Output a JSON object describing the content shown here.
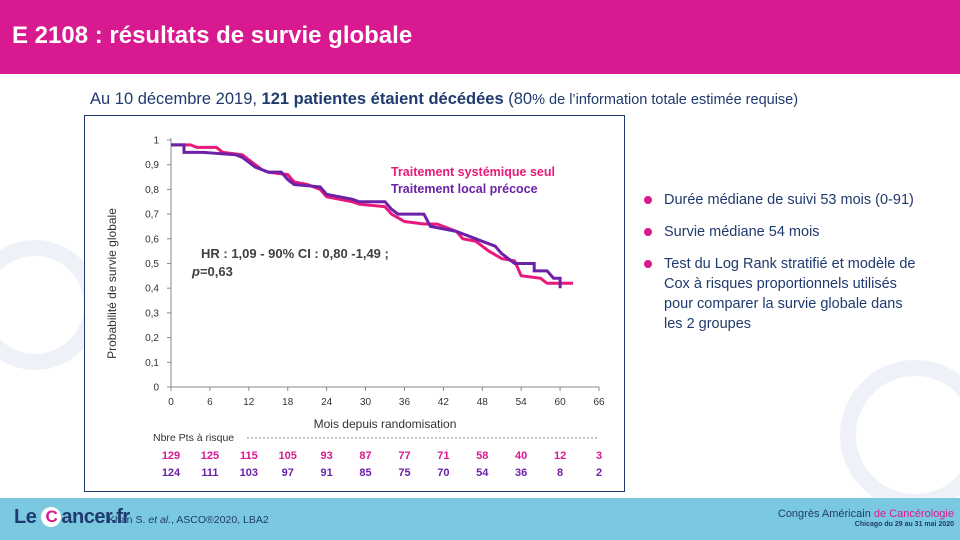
{
  "header": {
    "title": "E 2108 : résultats de survie globale"
  },
  "subtitle": {
    "part1": "Au 10 décembre 2019, ",
    "part2_bold": "121 patientes étaient décédées",
    "part3": " (80",
    "part4_small": "% de l’information totale estimée requise)"
  },
  "chart_data": {
    "type": "line",
    "xlabel": "Mois depuis randomisation",
    "ylabel": "Probabilité de survie globale",
    "xlim": [
      0,
      66
    ],
    "ylim": [
      0,
      1
    ],
    "x_ticks": [
      "0",
      "6",
      "12",
      "18",
      "24",
      "30",
      "36",
      "42",
      "48",
      "54",
      "60",
      "66"
    ],
    "y_ticks": [
      "0",
      "0,1",
      "0,2",
      "0,3",
      "0,4",
      "0,5",
      "0,6",
      "0,7",
      "0,8",
      "0,9",
      "1"
    ],
    "series": [
      {
        "name": "Traitement systémique seul",
        "color": "#e8197a",
        "points": [
          [
            0,
            0.98
          ],
          [
            3,
            0.98
          ],
          [
            4,
            0.97
          ],
          [
            7,
            0.97
          ],
          [
            8,
            0.95
          ],
          [
            11,
            0.94
          ],
          [
            12,
            0.92
          ],
          [
            13,
            0.9
          ],
          [
            14,
            0.88
          ],
          [
            15,
            0.87
          ],
          [
            18,
            0.86
          ],
          [
            19,
            0.83
          ],
          [
            21,
            0.82
          ],
          [
            23,
            0.8
          ],
          [
            24,
            0.77
          ],
          [
            26,
            0.76
          ],
          [
            28,
            0.75
          ],
          [
            29,
            0.74
          ],
          [
            33,
            0.73
          ],
          [
            34,
            0.7
          ],
          [
            36,
            0.67
          ],
          [
            39,
            0.66
          ],
          [
            41,
            0.66
          ],
          [
            42,
            0.65
          ],
          [
            44,
            0.63
          ],
          [
            45,
            0.6
          ],
          [
            47,
            0.59
          ],
          [
            48,
            0.57
          ],
          [
            49,
            0.55
          ],
          [
            51,
            0.52
          ],
          [
            53,
            0.51
          ],
          [
            54,
            0.45
          ],
          [
            57,
            0.44
          ],
          [
            58,
            0.42
          ],
          [
            62,
            0.42
          ]
        ]
      },
      {
        "name": "Traitement local précoce",
        "color": "#6b21a8",
        "points": [
          [
            0,
            0.98
          ],
          [
            2,
            0.98
          ],
          [
            2,
            0.95
          ],
          [
            5,
            0.95
          ],
          [
            10,
            0.94
          ],
          [
            11,
            0.93
          ],
          [
            12,
            0.91
          ],
          [
            13,
            0.89
          ],
          [
            14,
            0.88
          ],
          [
            15,
            0.87
          ],
          [
            17,
            0.87
          ],
          [
            18,
            0.84
          ],
          [
            19,
            0.82
          ],
          [
            23,
            0.81
          ],
          [
            24,
            0.78
          ],
          [
            26,
            0.77
          ],
          [
            28,
            0.76
          ],
          [
            29,
            0.75
          ],
          [
            33,
            0.75
          ],
          [
            34,
            0.72
          ],
          [
            35,
            0.7
          ],
          [
            39,
            0.7
          ],
          [
            40,
            0.65
          ],
          [
            42,
            0.64
          ],
          [
            44,
            0.63
          ],
          [
            46,
            0.61
          ],
          [
            48,
            0.59
          ],
          [
            50,
            0.57
          ],
          [
            51,
            0.54
          ],
          [
            53,
            0.5
          ],
          [
            56,
            0.5
          ],
          [
            56,
            0.47
          ],
          [
            58,
            0.47
          ],
          [
            59,
            0.44
          ],
          [
            60,
            0.44
          ],
          [
            60,
            0.4
          ]
        ]
      }
    ],
    "annotation": {
      "line1": "HR : 1,09 - 90% CI : 0,80 -1,49 ;",
      "line2_italic": "p",
      "line2_rest": "=0,63"
    },
    "risk_table": {
      "title": "Nbre Pts à risque",
      "rows": [
        {
          "color": "#d9198f",
          "values": [
            "129",
            "125",
            "115",
            "105",
            "93",
            "87",
            "77",
            "71",
            "58",
            "40",
            "12",
            "3"
          ]
        },
        {
          "color": "#6b21a8",
          "values": [
            "124",
            "111",
            "103",
            "97",
            "91",
            "85",
            "75",
            "70",
            "54",
            "36",
            "8",
            "2"
          ]
        }
      ]
    }
  },
  "bullets": [
    "Durée médiane de suivi 53 mois (0-91)",
    "Survie médiane 54 mois",
    "Test du Log Rank stratifié et modèle de Cox à risques proportionnels utilisés pour comparer la survie globale dans les 2 groupes"
  ],
  "footer": {
    "logo_prefix": "Le ",
    "logo_c": "C",
    "logo_suffix": "ancer.fr",
    "citation_authors": "Khan S. ",
    "citation_etal": "et al.",
    "citation_rest": ", ASCO®2020, LBA2",
    "congress_part1": "Congrès Américain ",
    "congress_part2": "de Cancérologie",
    "congress_sub": "Chicago du 29 au 31 mai 2020"
  },
  "colors": {
    "header": "#d9198f",
    "footer": "#7bc9e0",
    "navy": "#1f3a6e"
  }
}
